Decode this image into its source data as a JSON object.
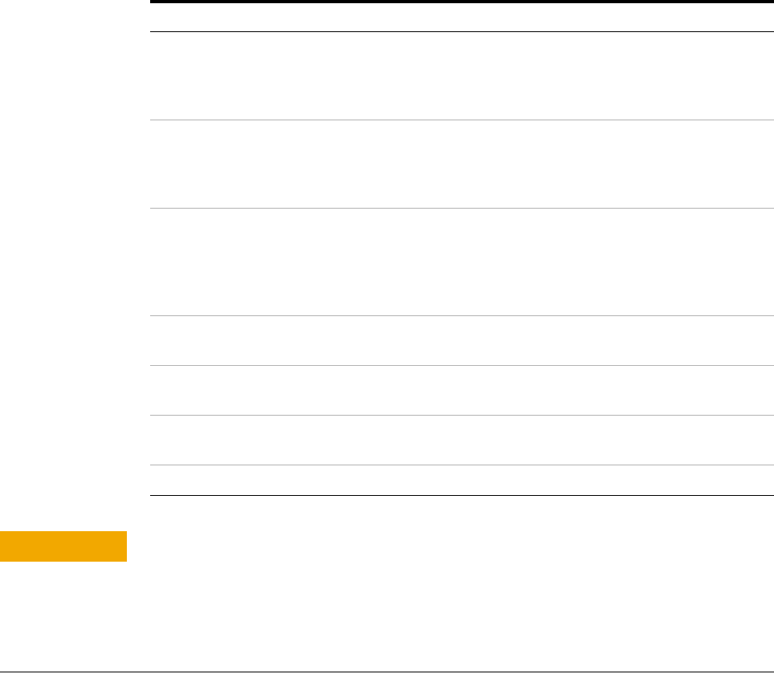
{
  "colors": {
    "accent_tab": "#f2a800",
    "rule_dark": "#000000",
    "rule_light": "#b3b3b3"
  },
  "table": {
    "row_count": 6
  }
}
